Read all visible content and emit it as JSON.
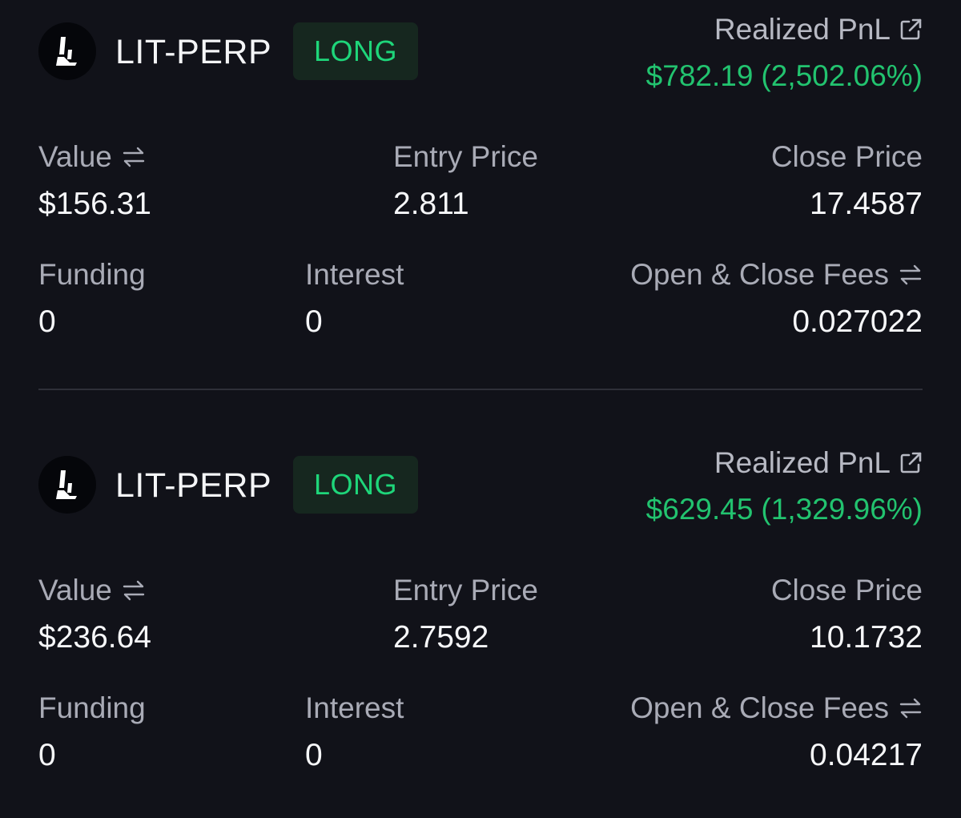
{
  "positions": [
    {
      "market": "LIT-PERP",
      "side": "LONG",
      "realized_pnl_label": "Realized PnL",
      "realized_pnl": "$782.19",
      "realized_pnl_pct": "(2,502.06%)",
      "value_label": "Value",
      "value": "$156.31",
      "entry_price_label": "Entry Price",
      "entry_price": "2.811",
      "close_price_label": "Close Price",
      "close_price": "17.4587",
      "funding_label": "Funding",
      "funding": "0",
      "interest_label": "Interest",
      "interest": "0",
      "fees_label": "Open & Close Fees",
      "fees": "0.027022"
    },
    {
      "market": "LIT-PERP",
      "side": "LONG",
      "realized_pnl_label": "Realized PnL",
      "realized_pnl": "$629.45",
      "realized_pnl_pct": "(1,329.96%)",
      "value_label": "Value",
      "value": "$236.64",
      "entry_price_label": "Entry Price",
      "entry_price": "2.7592",
      "close_price_label": "Close Price",
      "close_price": "10.1732",
      "funding_label": "Funding",
      "funding": "0",
      "interest_label": "Interest",
      "interest": "0",
      "fees_label": "Open & Close Fees",
      "fees": "0.04217"
    }
  ],
  "icons": {
    "logo": "lighter-logo-icon",
    "external_link": "external-link-icon",
    "swap": "swap-arrows-icon"
  },
  "colors": {
    "background": "#111219",
    "positive": "#22c36f",
    "long_badge_text": "#1ed67a",
    "long_badge_bg": "#16271f",
    "label": "#a9abb6",
    "value": "#f6f7f9"
  }
}
